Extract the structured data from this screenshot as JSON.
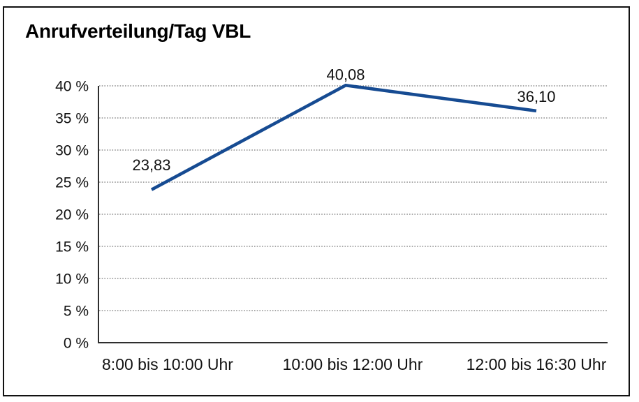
{
  "frame": {
    "background": "#ffffff",
    "border_color": "#111111"
  },
  "chart_data": {
    "type": "line",
    "title": "Anrufverteilung/Tag VBL",
    "categories": [
      "8:00 bis 10:00 Uhr",
      "10:00 bis 12:00 Uhr",
      "12:00 bis 16:30 Uhr"
    ],
    "values": [
      23.83,
      40.08,
      36.1
    ],
    "point_labels": [
      "23,83",
      "40,08",
      "36,10"
    ],
    "xlabel": "",
    "ylabel": "",
    "ylim": [
      0,
      40
    ],
    "ytick_values": [
      0,
      5,
      10,
      15,
      20,
      25,
      30,
      35,
      40
    ],
    "ytick_labels": [
      "0 %",
      "5 %",
      "10 %",
      "15 %",
      "20 %",
      "25 %",
      "30 %",
      "35 %",
      "40 %"
    ],
    "grid": "horizontal-dotted",
    "legend_position": "none",
    "line_color": "#164B92",
    "gridline_color": "#777777",
    "axis_color": "#2e2e2e",
    "text_color": "#121212"
  }
}
